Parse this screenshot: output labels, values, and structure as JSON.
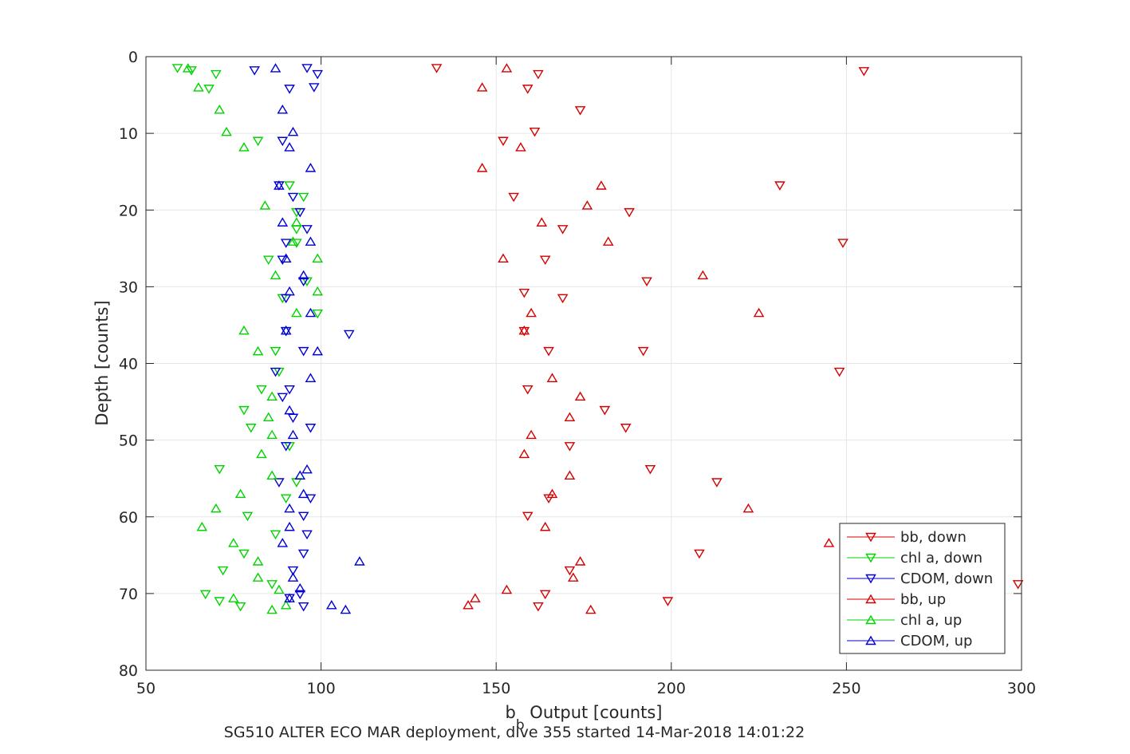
{
  "chart_data": {
    "type": "scatter",
    "xlabel": "b",
    "xlabel_subscript": "b",
    "xlabel_rest": " Output [counts]",
    "ylabel": "Depth [counts]",
    "caption": "SG510 ALTER ECO MAR deployment, dive 355 started 14-Mar-2018 14:01:22",
    "xlim": [
      50,
      300
    ],
    "ylim": [
      0,
      80
    ],
    "y_reversed": true,
    "xticks": [
      50,
      100,
      150,
      200,
      250,
      300
    ],
    "yticks": [
      0,
      10,
      20,
      30,
      40,
      50,
      60,
      70,
      80
    ],
    "grid": true,
    "legend_position": "bottom-right",
    "series": [
      {
        "name": "bb, down",
        "color": "#d40000",
        "marker": "triangle-down",
        "points": [
          [
            133,
            1.5
          ],
          [
            162,
            2.3
          ],
          [
            255,
            1.9
          ],
          [
            159,
            4.2
          ],
          [
            174,
            7
          ],
          [
            152,
            11
          ],
          [
            161,
            9.8
          ],
          [
            231,
            16.8
          ],
          [
            155,
            18.3
          ],
          [
            188,
            20.3
          ],
          [
            169,
            22.5
          ],
          [
            249,
            24.3
          ],
          [
            164,
            26.5
          ],
          [
            193,
            29.3
          ],
          [
            158,
            30.8
          ],
          [
            169,
            31.5
          ],
          [
            158,
            35.8
          ],
          [
            165,
            38.4
          ],
          [
            192,
            38.4
          ],
          [
            248,
            41.1
          ],
          [
            159,
            43.4
          ],
          [
            181,
            46.1
          ],
          [
            187,
            48.4
          ],
          [
            171,
            50.8
          ],
          [
            194,
            53.8
          ],
          [
            213,
            55.5
          ],
          [
            165,
            57.6
          ],
          [
            159,
            59.9
          ],
          [
            208,
            64.8
          ],
          [
            171,
            67
          ],
          [
            164,
            70.1
          ],
          [
            199,
            71
          ],
          [
            162,
            71.7
          ],
          [
            299,
            68.8
          ]
        ]
      },
      {
        "name": "chl a, down",
        "color": "#00d400",
        "marker": "triangle-down",
        "points": [
          [
            59,
            1.5
          ],
          [
            63,
            1.8
          ],
          [
            70,
            2.3
          ],
          [
            68,
            4.2
          ],
          [
            82,
            11
          ],
          [
            91,
            16.8
          ],
          [
            95,
            18.3
          ],
          [
            93,
            20.3
          ],
          [
            93,
            22.5
          ],
          [
            93,
            24.3
          ],
          [
            85,
            26.5
          ],
          [
            89,
            31.5
          ],
          [
            96,
            29.3
          ],
          [
            99,
            33.5
          ],
          [
            90,
            35.8
          ],
          [
            87,
            38.4
          ],
          [
            88,
            41.1
          ],
          [
            83,
            43.4
          ],
          [
            78,
            46.1
          ],
          [
            80,
            48.4
          ],
          [
            91,
            50.8
          ],
          [
            71,
            53.8
          ],
          [
            93,
            55.5
          ],
          [
            90,
            57.6
          ],
          [
            79,
            59.9
          ],
          [
            87,
            62.3
          ],
          [
            78,
            64.8
          ],
          [
            72,
            67
          ],
          [
            86,
            68.8
          ],
          [
            67,
            70.1
          ],
          [
            71,
            71
          ],
          [
            77,
            71.7
          ]
        ]
      },
      {
        "name": "CDOM, down",
        "color": "#0000d4",
        "marker": "triangle-down",
        "points": [
          [
            81,
            1.8
          ],
          [
            96,
            1.5
          ],
          [
            99,
            2.3
          ],
          [
            91,
            4.2
          ],
          [
            98,
            4
          ],
          [
            89,
            11
          ],
          [
            88,
            16.8
          ],
          [
            92,
            18.3
          ],
          [
            94,
            20.3
          ],
          [
            96,
            22.5
          ],
          [
            90,
            24.3
          ],
          [
            89,
            26.5
          ],
          [
            95,
            29.3
          ],
          [
            90,
            31.5
          ],
          [
            108,
            36.2
          ],
          [
            90,
            35.8
          ],
          [
            95,
            38.4
          ],
          [
            87,
            41.1
          ],
          [
            91,
            43.4
          ],
          [
            89,
            44.4
          ],
          [
            92,
            47.1
          ],
          [
            97,
            48.4
          ],
          [
            90,
            50.8
          ],
          [
            88,
            55.5
          ],
          [
            97,
            57.6
          ],
          [
            95,
            59.9
          ],
          [
            96,
            62.3
          ],
          [
            95,
            64.8
          ],
          [
            92,
            67
          ],
          [
            94,
            70.1
          ],
          [
            91,
            70.6
          ],
          [
            95,
            71.7
          ]
        ]
      },
      {
        "name": "bb, up",
        "color": "#d40000",
        "marker": "triangle-up",
        "points": [
          [
            153,
            1.5
          ],
          [
            146,
            4
          ],
          [
            157,
            11.8
          ],
          [
            146,
            14.5
          ],
          [
            180,
            16.8
          ],
          [
            176,
            19.4
          ],
          [
            163,
            21.6
          ],
          [
            182,
            24.1
          ],
          [
            152,
            26.3
          ],
          [
            209,
            28.5
          ],
          [
            160,
            33.4
          ],
          [
            225,
            33.4
          ],
          [
            158,
            35.7
          ],
          [
            166,
            41.9
          ],
          [
            174,
            44.3
          ],
          [
            171,
            47
          ],
          [
            160,
            49.3
          ],
          [
            158,
            51.8
          ],
          [
            171,
            54.6
          ],
          [
            166,
            57
          ],
          [
            222,
            58.9
          ],
          [
            164,
            61.3
          ],
          [
            245,
            63.4
          ],
          [
            174,
            65.8
          ],
          [
            172,
            67.9
          ],
          [
            153,
            69.5
          ],
          [
            144,
            70.6
          ],
          [
            142,
            71.5
          ],
          [
            177,
            72.1
          ]
        ]
      },
      {
        "name": "chl a, up",
        "color": "#00d400",
        "marker": "triangle-up",
        "points": [
          [
            62,
            1.5
          ],
          [
            65,
            4
          ],
          [
            71,
            6.9
          ],
          [
            73,
            9.8
          ],
          [
            78,
            11.8
          ],
          [
            84,
            19.4
          ],
          [
            93,
            21.6
          ],
          [
            92,
            24.1
          ],
          [
            99,
            26.3
          ],
          [
            87,
            28.5
          ],
          [
            99,
            30.6
          ],
          [
            93,
            33.4
          ],
          [
            78,
            35.7
          ],
          [
            82,
            38.4
          ],
          [
            86,
            44.3
          ],
          [
            85,
            47
          ],
          [
            86,
            49.3
          ],
          [
            83,
            51.8
          ],
          [
            86,
            54.6
          ],
          [
            77,
            57
          ],
          [
            70,
            58.9
          ],
          [
            66,
            61.3
          ],
          [
            75,
            63.4
          ],
          [
            82,
            65.8
          ],
          [
            82,
            67.9
          ],
          [
            88,
            69.5
          ],
          [
            75,
            70.6
          ],
          [
            90,
            71.5
          ],
          [
            86,
            72.1
          ]
        ]
      },
      {
        "name": "CDOM, up",
        "color": "#0000d4",
        "marker": "triangle-up",
        "points": [
          [
            87,
            1.5
          ],
          [
            89,
            6.9
          ],
          [
            92,
            9.8
          ],
          [
            91,
            11.8
          ],
          [
            97,
            14.5
          ],
          [
            88,
            16.8
          ],
          [
            89,
            21.6
          ],
          [
            97,
            24.1
          ],
          [
            90,
            26.3
          ],
          [
            95,
            28.5
          ],
          [
            91,
            30.6
          ],
          [
            97,
            33.4
          ],
          [
            90,
            35.7
          ],
          [
            99,
            38.4
          ],
          [
            97,
            41.9
          ],
          [
            91,
            46.1
          ],
          [
            92,
            49.3
          ],
          [
            96,
            53.8
          ],
          [
            94,
            54.6
          ],
          [
            95,
            57
          ],
          [
            91,
            58.9
          ],
          [
            91,
            61.3
          ],
          [
            89,
            63.4
          ],
          [
            111,
            65.8
          ],
          [
            92,
            67.9
          ],
          [
            91,
            70.6
          ],
          [
            103,
            71.5
          ],
          [
            107,
            72.1
          ],
          [
            94,
            69.3
          ]
        ]
      }
    ]
  }
}
